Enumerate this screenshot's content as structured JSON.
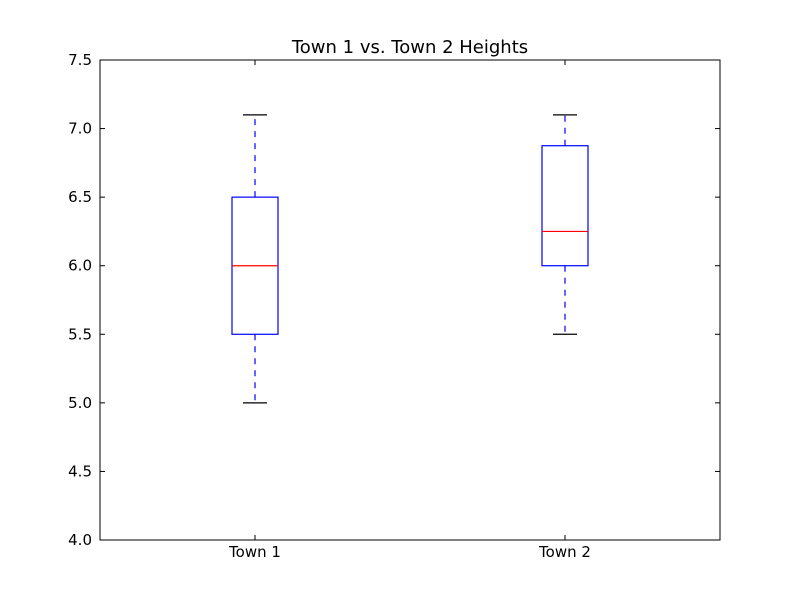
{
  "chart_data": {
    "type": "box",
    "title": "Town 1 vs. Town 2 Heights",
    "xlabel": "",
    "ylabel": "",
    "categories": [
      "Town 1",
      "Town 2"
    ],
    "boxes": [
      {
        "category": "Town 1",
        "whisker_low": 5.0,
        "q1": 5.5,
        "median": 6.0,
        "q3": 6.5,
        "whisker_high": 7.1
      },
      {
        "category": "Town 2",
        "whisker_low": 5.5,
        "q1": 6.0,
        "median": 6.25,
        "q3": 6.875,
        "whisker_high": 7.1
      }
    ],
    "ylim": [
      4.0,
      7.5
    ],
    "yticks": [
      "4.0",
      "4.5",
      "5.0",
      "5.5",
      "6.0",
      "6.5",
      "7.0",
      "7.5"
    ],
    "grid": false,
    "legend": "none",
    "colors": {
      "box": "#0000ff",
      "median": "#ff0000",
      "whisker": "#0000ff",
      "cap": "#000000",
      "axis": "#000000"
    }
  }
}
